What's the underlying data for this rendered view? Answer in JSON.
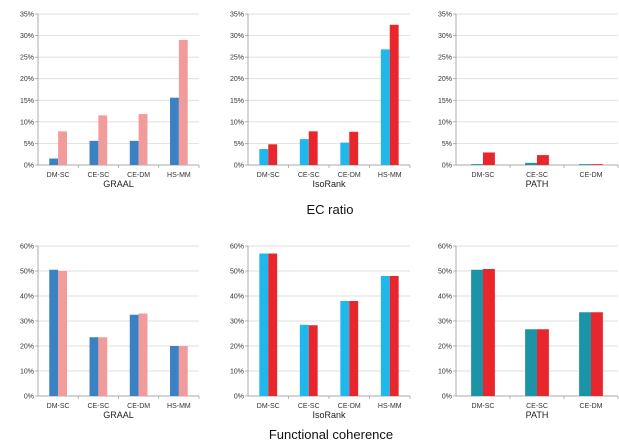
{
  "rows": [
    {
      "title": "EC ratio",
      "charts": [
        {
          "type": "bar",
          "xlabel": "GRAAL",
          "categories": [
            "DM-SC",
            "CE-SC",
            "CE-DM",
            "HS-MM"
          ],
          "yticks": [
            "0%",
            "5%",
            "10%",
            "15%",
            "20%",
            "25%",
            "30%",
            "35%"
          ],
          "ylim": [
            0,
            35
          ],
          "colors": [
            "#3a82c4",
            "#f29b9b"
          ],
          "series": [
            {
              "values": [
                1.5,
                5.6,
                5.6,
                15.6
              ]
            },
            {
              "values": [
                7.8,
                11.5,
                11.8,
                29
              ]
            }
          ]
        },
        {
          "type": "bar",
          "xlabel": "IsoRank",
          "categories": [
            "DM-SC",
            "CE-SC",
            "CE-DM",
            "HS-MM"
          ],
          "yticks": [
            "0%",
            "5%",
            "10%",
            "15%",
            "20%",
            "25%",
            "30%",
            "35%"
          ],
          "ylim": [
            0,
            35
          ],
          "colors": [
            "#1fb8ec",
            "#e8262c"
          ],
          "series": [
            {
              "values": [
                3.7,
                6,
                5.2,
                26.8
              ]
            },
            {
              "values": [
                4.8,
                7.8,
                7.7,
                32.5
              ]
            }
          ]
        },
        {
          "type": "bar",
          "xlabel": "PATH",
          "categories": [
            "DM-SC",
            "CE-SC",
            "CE-DM"
          ],
          "yticks": [
            "0%",
            "5%",
            "10%",
            "15%",
            "20%",
            "25%",
            "30%",
            "35%"
          ],
          "ylim": [
            0,
            35
          ],
          "colors": [
            "#1a94a6",
            "#e8262c"
          ],
          "series": [
            {
              "values": [
                0.2,
                0.5,
                0.2
              ]
            },
            {
              "values": [
                2.9,
                2.3,
                0.2
              ]
            }
          ]
        }
      ]
    },
    {
      "title": "Functional coherence",
      "charts": [
        {
          "type": "bar",
          "xlabel": "GRAAL",
          "categories": [
            "DM-SC",
            "CE-SC",
            "CE-DM",
            "HS-MM"
          ],
          "yticks": [
            "0%",
            "10%",
            "20%",
            "30%",
            "40%",
            "50%",
            "60%"
          ],
          "ylim": [
            0,
            60
          ],
          "colors": [
            "#3a82c4",
            "#f29b9b"
          ],
          "series": [
            {
              "values": [
                50.5,
                23.5,
                32.5,
                20
              ]
            },
            {
              "values": [
                50,
                23.5,
                33,
                20
              ]
            }
          ]
        },
        {
          "type": "bar",
          "xlabel": "IsoRank",
          "categories": [
            "DM-SC",
            "CE-SC",
            "CE-DM",
            "HS-MM"
          ],
          "yticks": [
            "0%",
            "10%",
            "20%",
            "30%",
            "40%",
            "50%",
            "60%"
          ],
          "ylim": [
            0,
            60
          ],
          "colors": [
            "#1fb8ec",
            "#e8262c"
          ],
          "series": [
            {
              "values": [
                57,
                28.5,
                38,
                48
              ]
            },
            {
              "values": [
                57,
                28.3,
                38,
                48
              ]
            }
          ]
        },
        {
          "type": "bar",
          "xlabel": "PATH",
          "categories": [
            "DM-SC",
            "CE-SC",
            "CE-DM"
          ],
          "yticks": [
            "0%",
            "10%",
            "20%",
            "30%",
            "40%",
            "50%",
            "60%"
          ],
          "ylim": [
            0,
            60
          ],
          "colors": [
            "#1a94a6",
            "#e8262c"
          ],
          "series": [
            {
              "values": [
                50.5,
                26.7,
                33.5
              ]
            },
            {
              "values": [
                50.8,
                26.7,
                33.5
              ]
            }
          ]
        }
      ]
    }
  ]
}
